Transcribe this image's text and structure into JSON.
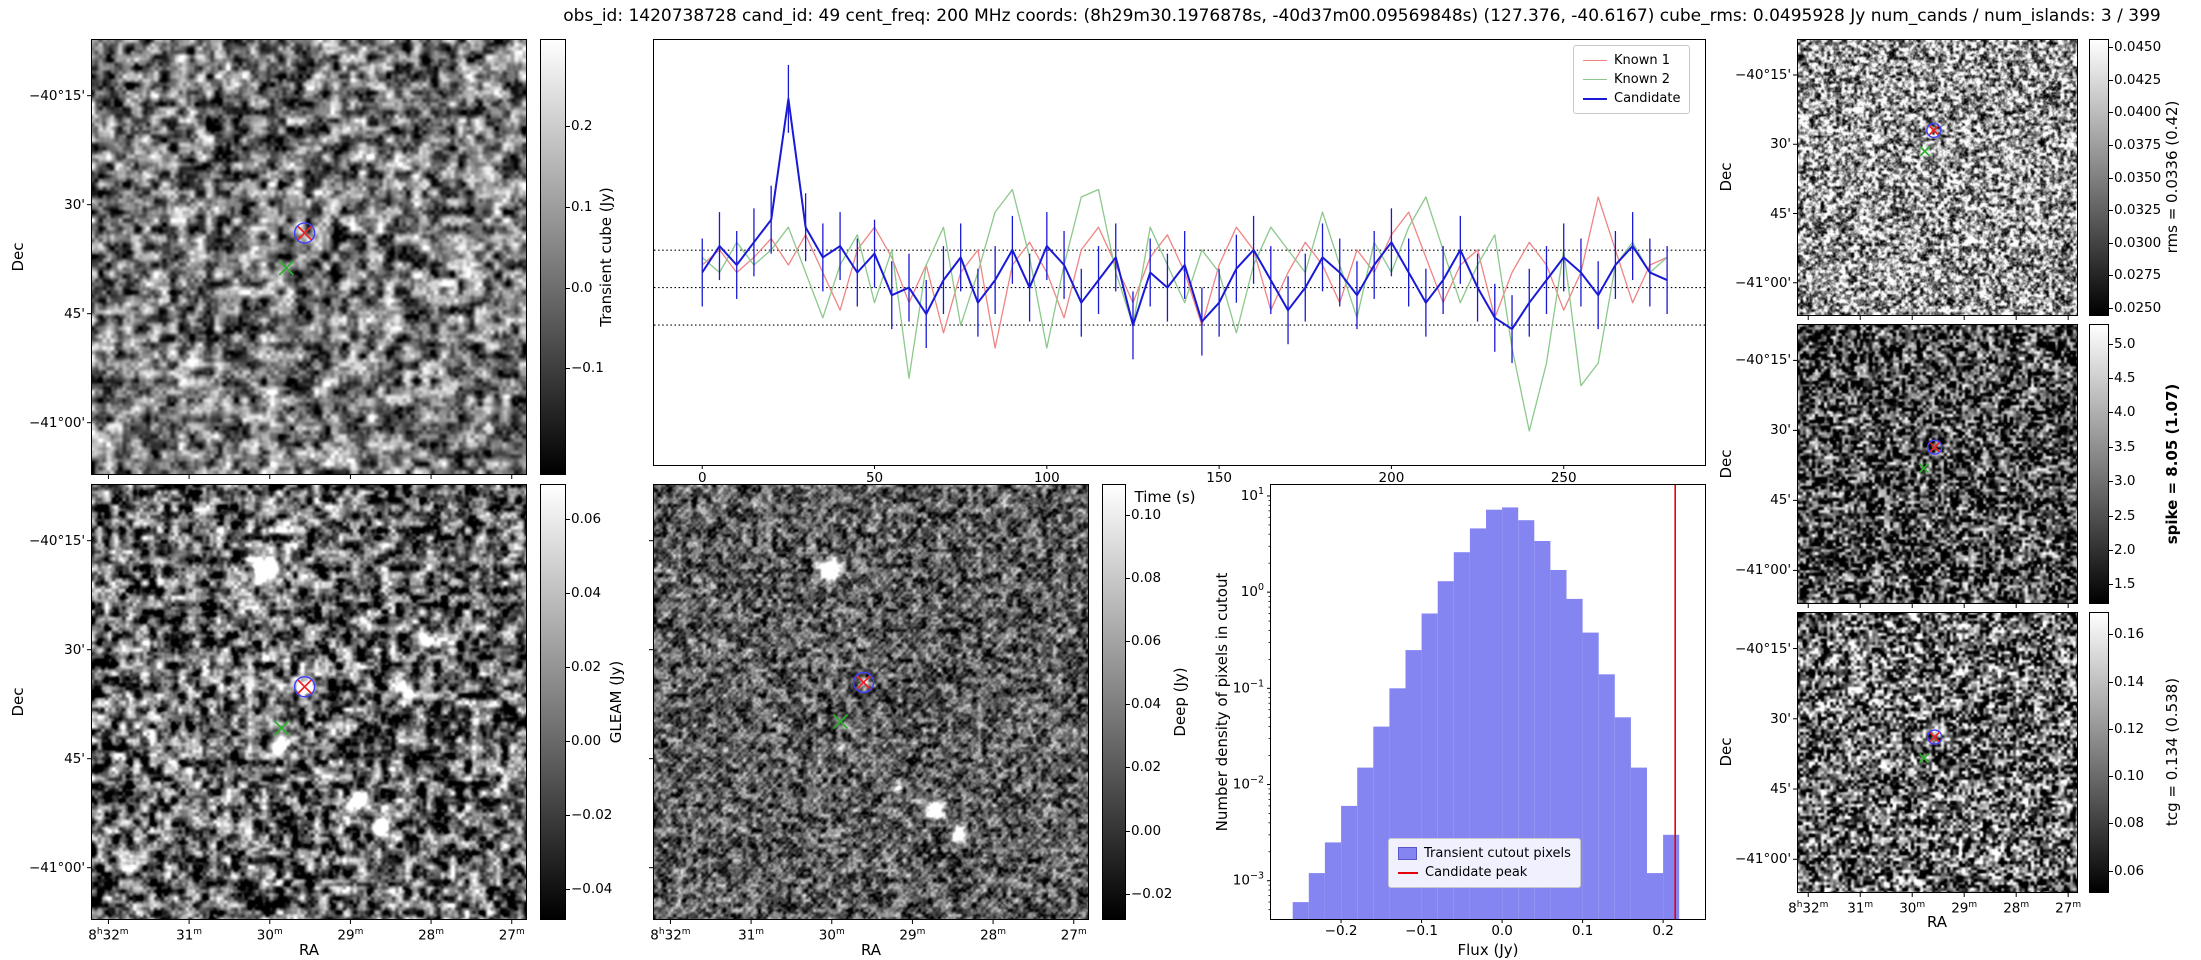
{
  "figure_title": "obs_id: 1420738728 cand_id: 49 cent_freq: 200 MHz coords: (8h29m30.1976878s, -40d37m00.09569848s) (127.376, -40.6167) cube_rms: 0.0495928 Jy num_cands / num_islands: 3 / 399",
  "axis_labels": {
    "ra": "RA",
    "dec": "Dec"
  },
  "sky_ticks": {
    "ra_labels": [
      "8h32m",
      "31m",
      "30m",
      "29m",
      "28m",
      "27m"
    ],
    "ra_fracs": [
      0.04,
      0.225,
      0.41,
      0.595,
      0.78,
      0.965
    ],
    "dec_labels": [
      "−40°15'",
      "30'",
      "45'",
      "−41°00'"
    ],
    "dec_fracs": [
      0.13,
      0.38,
      0.63,
      0.88
    ]
  },
  "markers": {
    "candidate_color": "#ee2222",
    "known_color": "#2cb02c",
    "ring_color": "#4040ff"
  },
  "colorbars": {
    "transient": {
      "label": "Transient cube (Jy)",
      "ticks": [
        "0.2",
        "0.1",
        "0.0",
        "−0.1"
      ],
      "fracs": [
        0.2,
        0.385,
        0.57,
        0.755
      ]
    },
    "gleam": {
      "label": "GLEAM (Jy)",
      "ticks": [
        "0.06",
        "0.04",
        "0.02",
        "0.00",
        "−0.02",
        "−0.04"
      ],
      "fracs": [
        0.08,
        0.25,
        0.42,
        0.59,
        0.76,
        0.93
      ]
    },
    "deep": {
      "label": "Deep (Jy)",
      "ticks": [
        "0.10",
        "0.08",
        "0.06",
        "0.04",
        "0.02",
        "0.00",
        "−0.02"
      ],
      "fracs": [
        0.07,
        0.215,
        0.36,
        0.505,
        0.65,
        0.795,
        0.94
      ]
    },
    "rms": {
      "label": "rms = 0.0336 (0.42)",
      "ticks": [
        "0.0450",
        "0.0425",
        "0.0400",
        "0.0375",
        "0.0350",
        "0.0325",
        "0.0300",
        "0.0275",
        "0.0250"
      ],
      "fracs": [
        0.03,
        0.1475,
        0.265,
        0.3825,
        0.5,
        0.6175,
        0.735,
        0.8525,
        0.97
      ],
      "bold": false
    },
    "spike": {
      "label": "spike = 8.05 (1.07)",
      "ticks": [
        "5.0",
        "4.5",
        "4.0",
        "3.5",
        "3.0",
        "2.5",
        "2.0",
        "1.5"
      ],
      "fracs": [
        0.07,
        0.193,
        0.316,
        0.439,
        0.561,
        0.684,
        0.807,
        0.93
      ],
      "bold": true
    },
    "tcg": {
      "label": "tcg = 0.134 (0.538)",
      "ticks": [
        "0.16",
        "0.14",
        "0.12",
        "0.10",
        "0.08",
        "0.06"
      ],
      "fracs": [
        0.08,
        0.248,
        0.416,
        0.584,
        0.752,
        0.92
      ],
      "bold": false
    }
  },
  "chart_data": [
    {
      "id": "lightcurve",
      "type": "line",
      "title": "",
      "xlabel": "Time (s)",
      "ylabel": "Transient cube (Jy)",
      "xlim": [
        -14,
        291
      ],
      "ylim": [
        -0.235,
        0.328
      ],
      "x_ticks": [
        0,
        50,
        100,
        150,
        200,
        250
      ],
      "hlines": [
        0.0496,
        0,
        -0.0496
      ],
      "legend_position": "upper right",
      "x": [
        0,
        5,
        10,
        15,
        20,
        25,
        30,
        35,
        40,
        45,
        50,
        55,
        60,
        65,
        70,
        75,
        80,
        85,
        90,
        95,
        100,
        105,
        110,
        115,
        120,
        125,
        130,
        135,
        140,
        145,
        150,
        155,
        160,
        165,
        170,
        175,
        180,
        185,
        190,
        195,
        200,
        205,
        210,
        215,
        220,
        225,
        230,
        235,
        240,
        245,
        250,
        255,
        260,
        265,
        270,
        275,
        280
      ],
      "series": [
        {
          "name": "Known 1",
          "color": "#ee8585",
          "width": 1.3,
          "y": [
            0.03,
            0.05,
            0.02,
            0.04,
            0.065,
            0.03,
            0.07,
            0.02,
            -0.03,
            0.05,
            0.08,
            0.04,
            -0.02,
            0.03,
            -0.06,
            0.02,
            0.05,
            -0.08,
            0.03,
            0.06,
            0.02,
            -0.04,
            0.05,
            0.08,
            0.03,
            -0.02,
            0.04,
            0.07,
            0.02,
            -0.05,
            0.03,
            0.08,
            0.05,
            -0.03,
            0.02,
            0.06,
            0.03,
            -0.02,
            0.05,
            0.02,
            0.07,
            0.1,
            0.04,
            -0.02,
            0.03,
            0.05,
            -0.04,
            0.02,
            0.06,
            0.03,
            -0.03,
            0.02,
            0.12,
            0.05,
            -0.02,
            0.03,
            0.04
          ]
        },
        {
          "name": "Known 2",
          "color": "#8cc88c",
          "width": 1.3,
          "y": [
            0.04,
            0.02,
            0.06,
            0.03,
            0.05,
            0.08,
            0.02,
            -0.04,
            0.03,
            0.07,
            -0.02,
            0.05,
            -0.12,
            0.03,
            0.08,
            -0.05,
            0.02,
            0.1,
            0.13,
            0.04,
            -0.08,
            0.03,
            0.12,
            0.13,
            0.02,
            -0.05,
            0.08,
            0.03,
            -0.02,
            0.05,
            0.02,
            -0.06,
            0.03,
            0.08,
            0.05,
            0.02,
            0.1,
            0.03,
            -0.04,
            0.06,
            0.02,
            0.08,
            0.12,
            0.05,
            -0.02,
            0.03,
            0.07,
            -0.08,
            -0.19,
            -0.1,
            0.05,
            -0.13,
            -0.1,
            0.03,
            0.06,
            0.02,
            0.04
          ]
        },
        {
          "name": "Candidate",
          "color": "#1a1ad6",
          "width": 2,
          "yerr": 0.045,
          "y": [
            0.02,
            0.055,
            0.03,
            0.06,
            0.09,
            0.25,
            0.08,
            0.04,
            0.055,
            0.02,
            0.045,
            -0.01,
            0.0,
            -0.035,
            0.01,
            0.04,
            -0.02,
            0.01,
            0.05,
            0.0,
            0.055,
            0.03,
            -0.02,
            0.01,
            0.04,
            -0.05,
            0.02,
            0.0,
            0.03,
            -0.045,
            -0.02,
            0.025,
            0.05,
            0.01,
            -0.03,
            0.0,
            0.04,
            0.02,
            -0.01,
            0.03,
            0.06,
            0.02,
            -0.02,
            0.01,
            0.05,
            0.0,
            -0.04,
            -0.055,
            -0.02,
            0.01,
            0.04,
            0.02,
            -0.01,
            0.03,
            0.055,
            0.02,
            0.01
          ]
        }
      ]
    },
    {
      "id": "flux-histogram",
      "type": "bar",
      "title": "",
      "xlabel": "Flux (Jy)",
      "ylabel": "Number density of pixels in cutout",
      "yscale": "log",
      "xlim": [
        -0.287,
        0.252
      ],
      "ylim": [
        0.0004,
        13
      ],
      "x_ticks": [
        "−0.2",
        "−0.1",
        "0.0",
        "0.1",
        "0.2"
      ],
      "x_tick_values": [
        -0.2,
        -0.1,
        0,
        0.1,
        0.2
      ],
      "y_tick_exponents": [
        1,
        0,
        -1,
        -2,
        -3
      ],
      "bar_color": "#8585f2",
      "bin_width": 0.02,
      "bin_centers": [
        -0.25,
        -0.23,
        -0.21,
        -0.19,
        -0.17,
        -0.15,
        -0.13,
        -0.11,
        -0.09,
        -0.07,
        -0.05,
        -0.03,
        -0.01,
        0.01,
        0.03,
        0.05,
        0.07,
        0.09,
        0.11,
        0.13,
        0.15,
        0.17,
        0.19,
        0.21
      ],
      "values": [
        0.0006,
        0.0012,
        0.0025,
        0.006,
        0.015,
        0.04,
        0.1,
        0.25,
        0.6,
        1.3,
        2.6,
        4.6,
        7.2,
        7.6,
        5.6,
        3.4,
        1.7,
        0.85,
        0.38,
        0.14,
        0.05,
        0.015,
        0.0012,
        0.003
      ],
      "vline": {
        "x": 0.215,
        "color": "#e60000",
        "label": "Candidate peak"
      },
      "legend": [
        "Transient cutout pixels",
        "Candidate peak"
      ]
    }
  ]
}
